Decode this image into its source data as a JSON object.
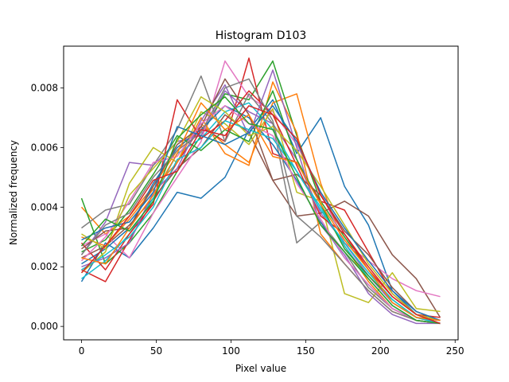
{
  "chart_data": {
    "type": "line",
    "title": "Histogram D103",
    "xlabel": "Pixel value",
    "ylabel": "Normalized frequency",
    "xlim": [
      -12,
      252
    ],
    "ylim": [
      -0.00045,
      0.0094
    ],
    "grid": false,
    "legend": "none",
    "x": [
      0,
      16,
      32,
      48,
      64,
      80,
      96,
      112,
      128,
      144,
      160,
      176,
      192,
      208,
      224,
      240
    ],
    "x_ticks": [
      0,
      50,
      100,
      150,
      200,
      250
    ],
    "x_tick_labels": [
      "0",
      "50",
      "100",
      "150",
      "200",
      "250"
    ],
    "y_ticks": [
      0.0,
      0.002,
      0.004,
      0.006,
      0.008
    ],
    "y_tick_labels": [
      "0.000",
      "0.002",
      "0.004",
      "0.006",
      "0.008"
    ],
    "colors": [
      "#1f77b4",
      "#ff7f0e",
      "#2ca02c",
      "#d62728",
      "#9467bd",
      "#8c564b",
      "#e377c2",
      "#7f7f7f",
      "#bcbd22",
      "#17becf"
    ],
    "series": [
      {
        "values": [
          0.0015,
          0.0028,
          0.0023,
          0.0033,
          0.0045,
          0.0043,
          0.005,
          0.0066,
          0.0076,
          0.0058,
          0.007,
          0.0047,
          0.0034,
          0.0012,
          0.0004,
          0.0001
        ]
      },
      {
        "values": [
          0.004,
          0.0031,
          0.0037,
          0.0047,
          0.0059,
          0.0068,
          0.0061,
          0.0055,
          0.0075,
          0.0078,
          0.0048,
          0.0027,
          0.0015,
          0.0006,
          0.0002,
          0.0001
        ]
      },
      {
        "values": [
          0.0043,
          0.0021,
          0.0028,
          0.0038,
          0.0052,
          0.0064,
          0.0078,
          0.0076,
          0.0089,
          0.0064,
          0.0042,
          0.003,
          0.0019,
          0.0008,
          0.0003,
          0.0001
        ]
      },
      {
        "values": [
          0.0019,
          0.0015,
          0.0029,
          0.0042,
          0.0055,
          0.0067,
          0.0062,
          0.009,
          0.0058,
          0.0055,
          0.0042,
          0.0039,
          0.0025,
          0.0011,
          0.0004,
          0.0002
        ]
      },
      {
        "values": [
          0.0024,
          0.0035,
          0.0055,
          0.0054,
          0.0062,
          0.0064,
          0.0079,
          0.0072,
          0.0068,
          0.0056,
          0.0038,
          0.0028,
          0.0017,
          0.0008,
          0.0003,
          0.0001
        ]
      },
      {
        "values": [
          0.0023,
          0.0027,
          0.0034,
          0.0043,
          0.0053,
          0.006,
          0.0071,
          0.0065,
          0.0049,
          0.0037,
          0.0038,
          0.0042,
          0.0037,
          0.0024,
          0.0016,
          0.0003
        ]
      },
      {
        "values": [
          0.0027,
          0.0031,
          0.0023,
          0.0038,
          0.005,
          0.0062,
          0.0089,
          0.0077,
          0.0072,
          0.0061,
          0.0045,
          0.0028,
          0.0022,
          0.0016,
          0.0012,
          0.001
        ]
      },
      {
        "values": [
          0.0033,
          0.0039,
          0.0041,
          0.0054,
          0.0066,
          0.0084,
          0.0062,
          0.0078,
          0.0068,
          0.0028,
          0.0035,
          0.0025,
          0.0013,
          0.0006,
          0.0002,
          0.0001
        ]
      },
      {
        "values": [
          0.0018,
          0.0025,
          0.0048,
          0.006,
          0.0055,
          0.0072,
          0.0068,
          0.0061,
          0.0073,
          0.0045,
          0.0042,
          0.0011,
          0.0008,
          0.0018,
          0.0006,
          0.0005
        ]
      },
      {
        "values": [
          0.0016,
          0.0022,
          0.0031,
          0.0043,
          0.0058,
          0.0063,
          0.0072,
          0.0075,
          0.0066,
          0.0052,
          0.004,
          0.0027,
          0.0016,
          0.0007,
          0.0002,
          0.0001
        ]
      },
      {
        "values": [
          0.0021,
          0.0026,
          0.0033,
          0.0048,
          0.006,
          0.0066,
          0.0074,
          0.007,
          0.0061,
          0.0049,
          0.0035,
          0.0023,
          0.0014,
          0.0006,
          0.0002,
          0.0001
        ]
      },
      {
        "values": [
          0.003,
          0.0027,
          0.0036,
          0.0046,
          0.0055,
          0.007,
          0.0058,
          0.0054,
          0.0082,
          0.0065,
          0.0031,
          0.0021,
          0.0012,
          0.0005,
          0.0002,
          0.0001
        ]
      },
      {
        "values": [
          0.0025,
          0.0029,
          0.0039,
          0.0051,
          0.0064,
          0.0059,
          0.0066,
          0.0062,
          0.0079,
          0.0056,
          0.0041,
          0.0026,
          0.0017,
          0.0009,
          0.0003,
          0.0002
        ]
      },
      {
        "values": [
          0.0028,
          0.0019,
          0.0031,
          0.0041,
          0.0076,
          0.0063,
          0.0069,
          0.0079,
          0.0071,
          0.0054,
          0.0037,
          0.0031,
          0.0019,
          0.001,
          0.0004,
          0.0003
        ]
      },
      {
        "values": [
          0.002,
          0.0023,
          0.0028,
          0.0045,
          0.0053,
          0.0069,
          0.0081,
          0.0064,
          0.0086,
          0.006,
          0.0034,
          0.0024,
          0.0011,
          0.0004,
          0.0001,
          0.0001
        ]
      },
      {
        "values": [
          0.0026,
          0.0032,
          0.0033,
          0.0047,
          0.0061,
          0.0067,
          0.0083,
          0.0071,
          0.0049,
          0.0051,
          0.0044,
          0.0032,
          0.0024,
          0.0013,
          0.0005,
          0.0002
        ]
      },
      {
        "values": [
          0.0022,
          0.003,
          0.0042,
          0.0055,
          0.0057,
          0.0068,
          0.0074,
          0.0068,
          0.0064,
          0.0048,
          0.0036,
          0.0023,
          0.0014,
          0.0006,
          0.0002,
          0.0001
        ]
      },
      {
        "values": [
          0.0024,
          0.0034,
          0.0038,
          0.005,
          0.0059,
          0.0065,
          0.008,
          0.0083,
          0.0069,
          0.0037,
          0.003,
          0.0021,
          0.0012,
          0.0005,
          0.0002,
          0.0001
        ]
      },
      {
        "values": [
          0.0031,
          0.0026,
          0.0044,
          0.0053,
          0.0062,
          0.0077,
          0.0072,
          0.0064,
          0.0067,
          0.0059,
          0.0047,
          0.0034,
          0.0021,
          0.0011,
          0.0004,
          0.0002
        ]
      },
      {
        "values": [
          0.0019,
          0.0024,
          0.003,
          0.004,
          0.0056,
          0.006,
          0.0069,
          0.0066,
          0.0063,
          0.0052,
          0.0039,
          0.0028,
          0.0018,
          0.0009,
          0.0003,
          0.0001
        ]
      },
      {
        "values": [
          0.0029,
          0.0033,
          0.0035,
          0.0045,
          0.0067,
          0.0064,
          0.0061,
          0.0065,
          0.0074,
          0.0062,
          0.0045,
          0.0033,
          0.0022,
          0.0012,
          0.0005,
          0.0002
        ]
      },
      {
        "values": [
          0.0023,
          0.0021,
          0.0033,
          0.0044,
          0.0058,
          0.0075,
          0.0066,
          0.0071,
          0.0057,
          0.0055,
          0.0041,
          0.0029,
          0.0019,
          0.0008,
          0.0003,
          0.0002
        ]
      },
      {
        "values": [
          0.0027,
          0.0036,
          0.0032,
          0.0042,
          0.0063,
          0.0071,
          0.0077,
          0.0068,
          0.0066,
          0.005,
          0.0034,
          0.0025,
          0.0016,
          0.0007,
          0.0002,
          0.0001
        ]
      },
      {
        "values": [
          0.0018,
          0.0027,
          0.0037,
          0.0049,
          0.0052,
          0.0066,
          0.0064,
          0.0074,
          0.0071,
          0.0063,
          0.0044,
          0.0031,
          0.002,
          0.001,
          0.0004,
          0.0001
        ]
      }
    ]
  }
}
